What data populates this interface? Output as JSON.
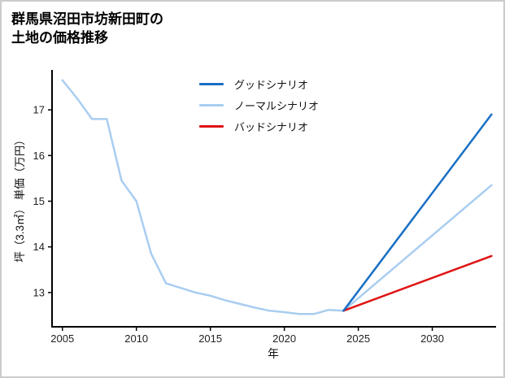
{
  "title_lines": [
    "群馬県沼田市坊新田町の",
    "土地の価格推移"
  ],
  "chart_data": {
    "type": "line",
    "title": "群馬県沼田市坊新田町の土地の価格推移",
    "xlabel": "年",
    "ylabel": "坪（3.3㎡） 単価（万円）",
    "xlim": [
      2004.3,
      2034.2
    ],
    "ylim": [
      12.25,
      17.875
    ],
    "x_ticks": [
      2005,
      2010,
      2015,
      2020,
      2025,
      2030
    ],
    "y_ticks": [
      13,
      14,
      15,
      16,
      17
    ],
    "grid": false,
    "legend_position": "upper center",
    "axis_color": "#000000",
    "tick_label_color": "#222222",
    "series": [
      {
        "name": "グッドシナリオ",
        "color": "#1a6fc4",
        "x": [
          2024,
          2034
        ],
        "y": [
          12.6,
          16.9
        ]
      },
      {
        "name": "ノーマルシナリオ",
        "color": "#a9cdf0",
        "x": [
          2005,
          2006,
          2007,
          2008,
          2009,
          2010,
          2011,
          2012,
          2013,
          2014,
          2015,
          2016,
          2017,
          2018,
          2019,
          2020,
          2021,
          2022,
          2023,
          2024,
          2034
        ],
        "y": [
          17.65,
          17.25,
          16.8,
          16.8,
          15.45,
          15.0,
          13.85,
          13.2,
          13.1,
          13.0,
          12.93,
          12.83,
          12.75,
          12.67,
          12.6,
          12.57,
          12.53,
          12.53,
          12.62,
          12.6,
          15.35
        ]
      },
      {
        "name": "バッドシナリオ",
        "color": "#e01212",
        "x": [
          2024,
          2034
        ],
        "y": [
          12.6,
          13.8
        ]
      }
    ]
  }
}
